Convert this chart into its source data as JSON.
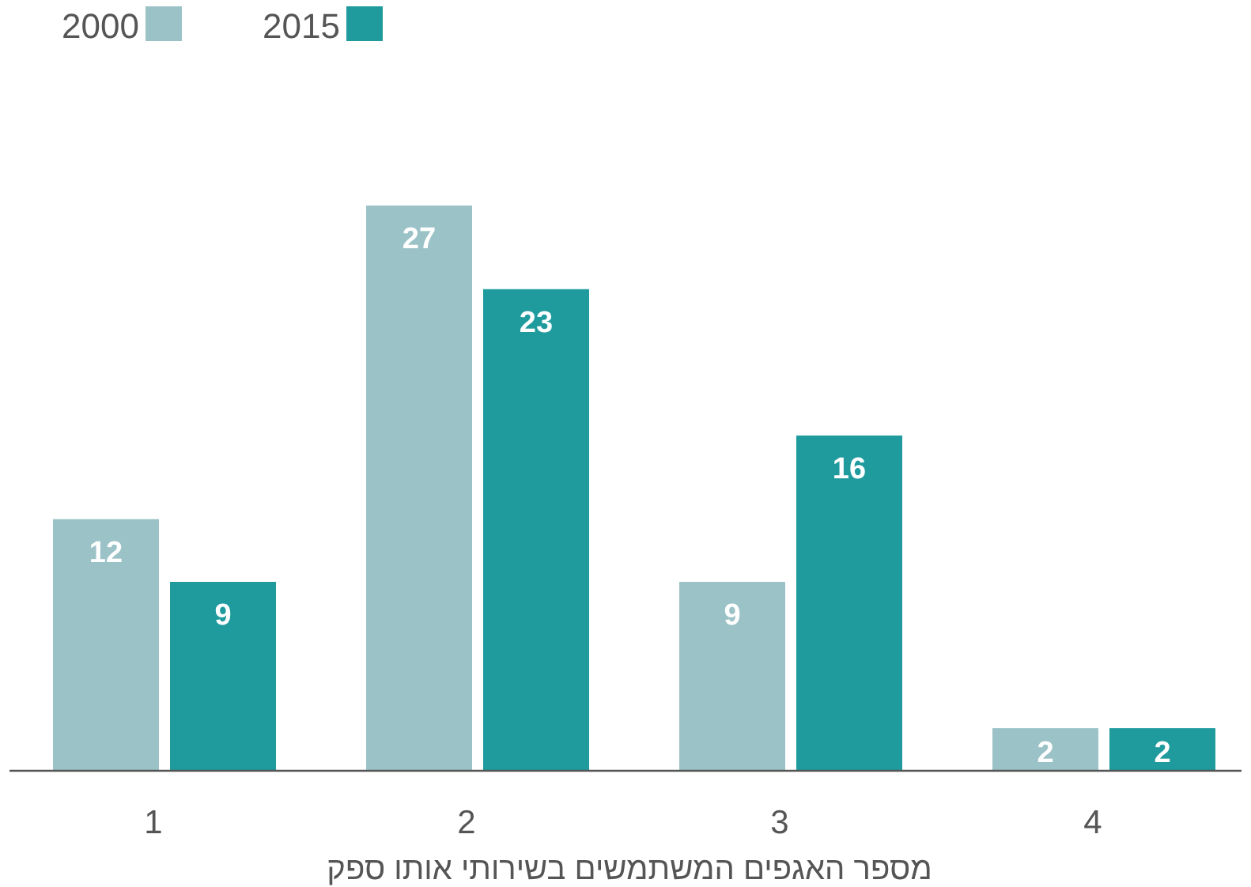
{
  "chart_data": {
    "type": "bar",
    "xlabel": "מספר האגפים המשתמשים בשירותי אותו ספק",
    "categories": [
      "1",
      "2",
      "3",
      "4"
    ],
    "series": [
      {
        "name": "2000",
        "color": "#9bc3c7",
        "values": [
          12,
          27,
          9,
          2
        ]
      },
      {
        "name": "2015",
        "color": "#1f9b9e",
        "values": [
          9,
          23,
          16,
          2
        ]
      }
    ],
    "data_labels": true,
    "legend": "top left"
  }
}
